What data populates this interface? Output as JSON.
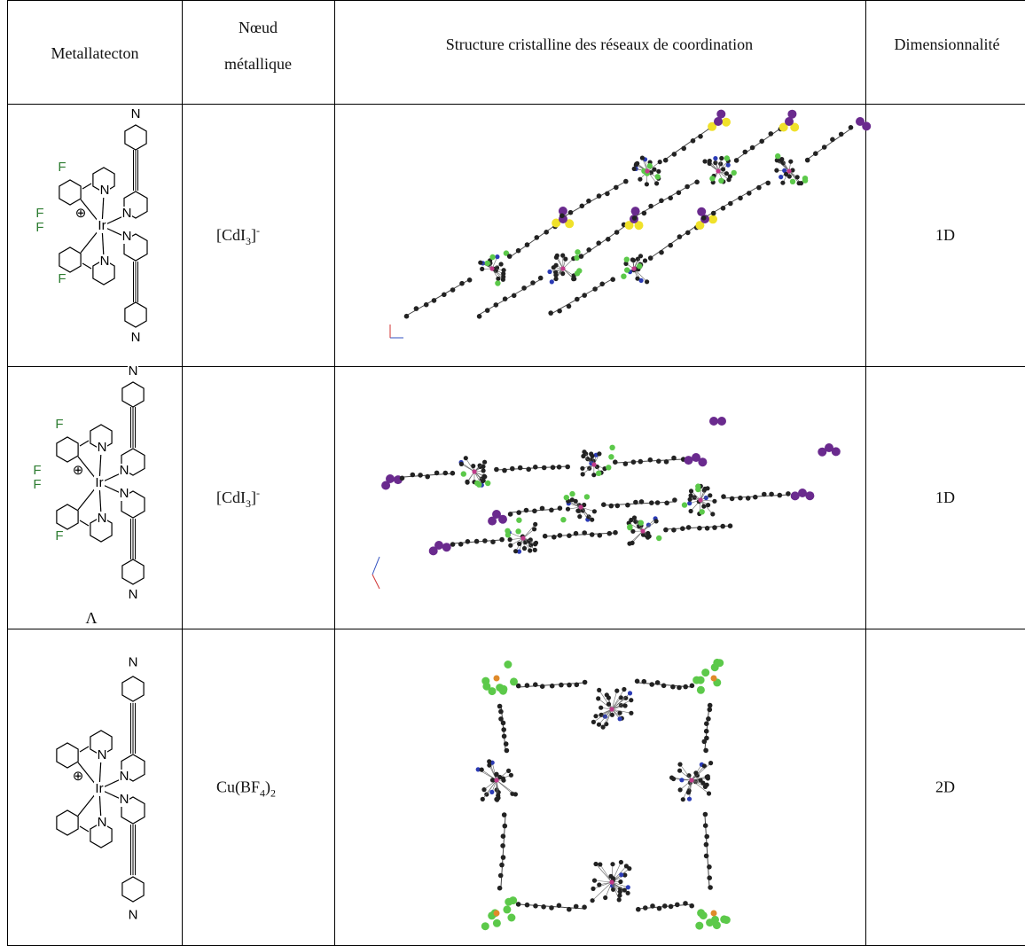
{
  "table": {
    "header": [
      "Metallatecton",
      [
        "Nœud",
        "métallique"
      ],
      "Structure cristalline des réseaux de coordination",
      "Dimensionnalité"
    ],
    "rows": [
      {
        "atoms": [
          "N",
          "F",
          "F",
          "F",
          "F",
          "N",
          "N",
          "Ir",
          "N",
          "N",
          "N",
          "⊕"
        ],
        "node": [
          {
            "text": "[CdI"
          },
          {
            "sub": "3"
          },
          {
            "text": "]"
          },
          {
            "sup": "-"
          }
        ],
        "dimensionality": "1D"
      },
      {
        "atoms": [
          "N",
          "F",
          "F",
          "F",
          "F",
          "N",
          "N",
          "Ir",
          "N",
          "N",
          "N",
          "⊕"
        ],
        "label": "Λ",
        "node": [
          {
            "text": "[CdI"
          },
          {
            "sub": "3"
          },
          {
            "text": "]"
          },
          {
            "sup": "-"
          }
        ],
        "dimensionality": "1D"
      },
      {
        "atoms": [
          "N",
          "N",
          "N",
          "Ir",
          "N",
          "N",
          "N",
          "⊕"
        ],
        "node": [
          {
            "text": "Cu(BF"
          },
          {
            "sub": "4"
          },
          {
            "text": ")"
          },
          {
            "sub": "2"
          }
        ],
        "dimensionality": "2D"
      }
    ]
  }
}
